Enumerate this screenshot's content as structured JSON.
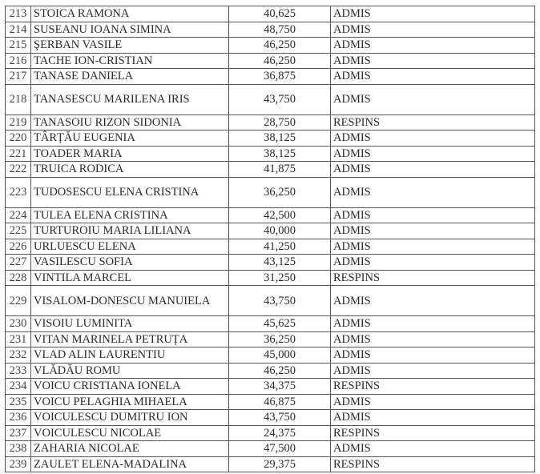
{
  "rows": [
    {
      "no": "213",
      "name": "STOICA RAMONA",
      "score": "40,625",
      "status": "ADMIS"
    },
    {
      "no": "214",
      "name": "SUSEANU IOANA SIMINA",
      "score": "48,750",
      "status": "ADMIS"
    },
    {
      "no": "215",
      "name": "ŞERBAN VASILE",
      "score": "46,250",
      "status": "ADMIS"
    },
    {
      "no": "216",
      "name": "TACHE ION-CRISTIAN",
      "score": "46,250",
      "status": "ADMIS"
    },
    {
      "no": "217",
      "name": "TANASE DANIELA",
      "score": "36,875",
      "status": "ADMIS"
    },
    {
      "no": "218",
      "name": "TANASESCU  MARILENA  IRIS",
      "score": "43,750",
      "status": "ADMIS",
      "tall": true
    },
    {
      "no": "219",
      "name": "TANASOIU RIZON SIDONIA",
      "score": "28,750",
      "status": "RESPINS"
    },
    {
      "no": "220",
      "name": "TÂRȚĂU EUGENIA",
      "score": "38,125",
      "status": "ADMIS"
    },
    {
      "no": "221",
      "name": "TOADER MARIA",
      "score": "38,125",
      "status": "ADMIS"
    },
    {
      "no": "222",
      "name": "TRUICA RODICA",
      "score": "41,875",
      "status": "ADMIS"
    },
    {
      "no": "223",
      "name": "TUDOSESCU ELENA CRISTINA",
      "score": "36,250",
      "status": "ADMIS",
      "tall": true
    },
    {
      "no": "224",
      "name": "TULEA ELENA CRISTINA",
      "score": "42,500",
      "status": "ADMIS"
    },
    {
      "no": "225",
      "name": "TURTUROIU MARIA LILIANA",
      "score": "40,000",
      "status": "ADMIS"
    },
    {
      "no": "226",
      "name": "URLUESCU ELENA",
      "score": "41,250",
      "status": "ADMIS"
    },
    {
      "no": "227",
      "name": "VASILESCU SOFIA",
      "score": "43,125",
      "status": "ADMIS"
    },
    {
      "no": "228",
      "name": "VINTILA MARCEL",
      "score": "31,250",
      "status": "RESPINS"
    },
    {
      "no": "229",
      "name": "VISALOM-DONESCU MANUIELA",
      "score": "43,750",
      "status": "ADMIS",
      "tall": true,
      "wrap": true
    },
    {
      "no": "230",
      "name": "VISOIU LUMINITA",
      "score": "45,625",
      "status": "ADMIS"
    },
    {
      "no": "231",
      "name": "VITAN MARINELA PETRUȚA",
      "score": "36,250",
      "status": "ADMIS"
    },
    {
      "no": "232",
      "name": "VLAD ALIN LAURENTIU",
      "score": "45,000",
      "status": "ADMIS"
    },
    {
      "no": "233",
      "name": "VLĂDĂU ROMU",
      "score": "46,250",
      "status": "ADMIS"
    },
    {
      "no": "234",
      "name": "VOICU CRISTIANA IONELA",
      "score": "34,375",
      "status": "RESPINS"
    },
    {
      "no": "235",
      "name": "VOICU PELAGHIA MIHAELA",
      "score": "46,875",
      "status": "ADMIS"
    },
    {
      "no": "236",
      "name": "VOICULESCU DUMITRU ION",
      "score": "43,750",
      "status": "ADMIS"
    },
    {
      "no": "237",
      "name": "VOICULESCU NICOLAE",
      "score": "24,375",
      "status": "RESPINS"
    },
    {
      "no": "238",
      "name": "ZAHARIA NICOLAE",
      "score": "47,500",
      "status": "ADMIS"
    },
    {
      "no": "239",
      "name": "ZAULET ELENA-MADALINA",
      "score": "29,375",
      "status": "RESPINS"
    }
  ]
}
